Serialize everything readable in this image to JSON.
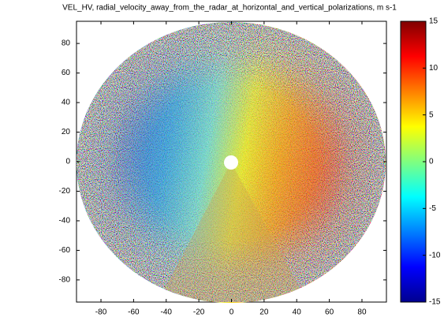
{
  "chart_data": {
    "type": "heatmap",
    "title": "VEL_HV, radial_velocity_away_from_the_radar_at_horizontal_and_vertical_polarizations, m s-1",
    "xlim": [
      -95,
      95
    ],
    "ylim": [
      -95,
      95
    ],
    "xticks": [
      -80,
      -60,
      -40,
      -20,
      0,
      20,
      40,
      60,
      80
    ],
    "yticks": [
      -80,
      -60,
      -40,
      -20,
      0,
      20,
      40,
      60,
      80
    ],
    "colorbar": {
      "lim": [
        -15,
        15
      ],
      "ticks": [
        -15,
        -10,
        -5,
        0,
        5,
        10,
        15
      ]
    }
  }
}
